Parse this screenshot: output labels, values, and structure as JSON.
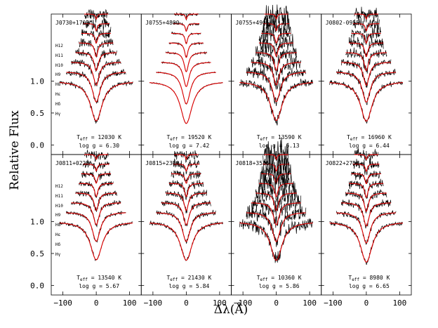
{
  "chart_data": {
    "type": "line",
    "title": "",
    "xlabel": "Δλ(Å)",
    "ylabel": "Relative Flux",
    "xlim": [
      -135,
      135
    ],
    "ylim": [
      -0.15,
      2.05
    ],
    "x_ticks": [
      -100,
      0,
      100
    ],
    "y_ticks": [
      0.0,
      0.5,
      1.0
    ],
    "y_tick_labels": [
      "0.0",
      "0.5",
      "1.0"
    ],
    "line_labels": [
      "H12",
      "H11",
      "H10",
      "H9",
      "H8",
      "Hε",
      "Hδ",
      "Hγ"
    ],
    "series": [
      {
        "name": "observed spectrum",
        "color": "#000000"
      },
      {
        "name": "model fit",
        "color": "#e00000"
      }
    ],
    "panels": [
      {
        "id": "J0730+1703",
        "teff_label": "T",
        "teff_sub": "eff",
        "teff_value": "= 12030 K",
        "logg": "log g = 6.30",
        "teff": 12030,
        "log_g": 6.3,
        "noise": 0.035
      },
      {
        "id": "J0755+4800",
        "teff_label": "T",
        "teff_sub": "eff",
        "teff_value": "= 19520 K",
        "logg": "log g = 7.42",
        "teff": 19520,
        "log_g": 7.42,
        "noise": 0.008
      },
      {
        "id": "J0755+4906",
        "teff_label": "T",
        "teff_sub": "eff",
        "teff_value": "= 13590 K",
        "logg": "log g = 6.13",
        "teff": 13590,
        "log_g": 6.13,
        "noise": 0.07
      },
      {
        "id": "J0802-0955",
        "teff_label": "T",
        "teff_sub": "eff",
        "teff_value": "= 16960 K",
        "logg": "log g = 6.44",
        "teff": 16960,
        "log_g": 6.44,
        "noise": 0.04
      },
      {
        "id": "J0811+0225",
        "teff_label": "T",
        "teff_sub": "eff",
        "teff_value": "= 13540 K",
        "logg": "log g = 5.67",
        "teff": 13540,
        "log_g": 5.67,
        "noise": 0.025
      },
      {
        "id": "J0815+2309",
        "teff_label": "T",
        "teff_sub": "eff",
        "teff_value": "= 21430 K",
        "logg": "log g = 5.84",
        "teff": 21430,
        "log_g": 5.84,
        "noise": 0.03
      },
      {
        "id": "J0818+3536",
        "teff_label": "T",
        "teff_sub": "eff",
        "teff_value": "= 10360 K",
        "logg": "log g = 5.86",
        "teff": 10360,
        "log_g": 5.86,
        "noise": 0.09
      },
      {
        "id": "J0822+2753",
        "teff_label": "T",
        "teff_sub": "eff",
        "teff_value": "= 8980 K",
        "logg": "log g = 6.65",
        "teff": 8980,
        "log_g": 6.65,
        "noise": 0.035
      }
    ],
    "grid": false,
    "legend": "none"
  }
}
